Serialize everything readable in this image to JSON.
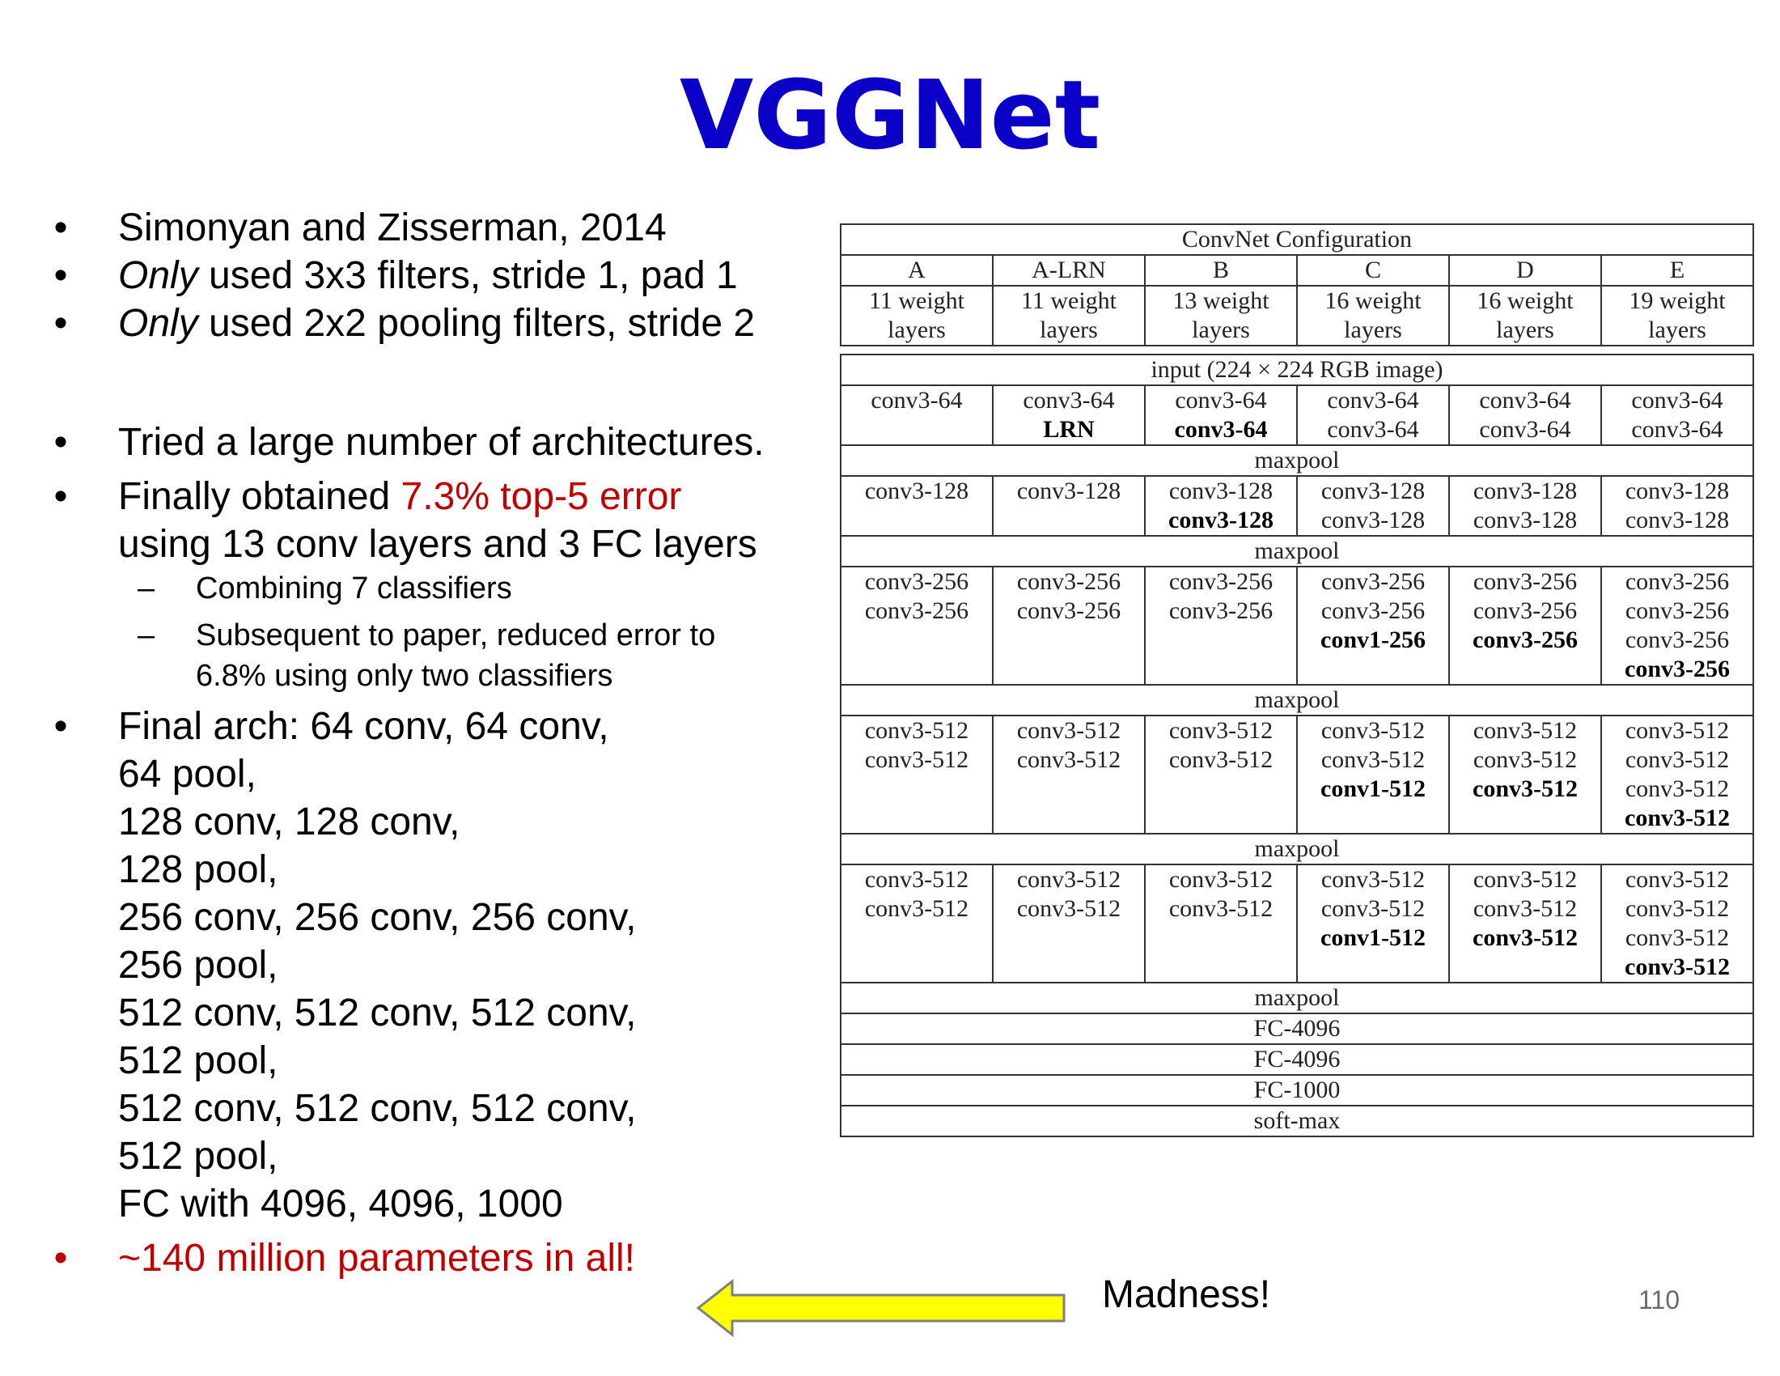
{
  "title": "VGGNet",
  "bullets": {
    "b1": "Simonyan and Zisserman, 2014",
    "b2_em": "Only",
    "b2_rest": " used 3x3 filters, stride 1, pad 1",
    "b3_em": "Only",
    "b3_rest": " used 2x2 pooling filters, stride 2",
    "b4": "Tried a large number of architectures.",
    "b5_pre": "Finally obtained ",
    "b5_red": "7.3% top-5 error",
    "b5_line2": "using 13 conv layers and 3 FC layers",
    "sub1": "Combining 7 classifiers",
    "sub2_line1": "Subsequent to paper, reduced error to",
    "sub2_line2": "6.8% using only two classifiers",
    "final_lines": [
      "Final arch:  64 conv, 64 conv,",
      "64 pool,",
      "128 conv, 128 conv,",
      "128 pool,",
      "256 conv, 256 conv, 256 conv,",
      "256 pool,",
      "512 conv, 512 conv, 512  conv,",
      "512 pool,",
      "512 conv, 512 conv, 512  conv,",
      "512 pool,",
      "FC with 4096, 4096, 1000"
    ],
    "last": "~140 million parameters in all!",
    "bullet_char": "•",
    "dash_char": "–"
  },
  "config_table": {
    "heading": "ConvNet Configuration",
    "columns": [
      "A",
      "A-LRN",
      "B",
      "C",
      "D",
      "E"
    ],
    "layer_counts": [
      [
        "11 weight",
        "layers"
      ],
      [
        "11 weight",
        "layers"
      ],
      [
        "13 weight",
        "layers"
      ],
      [
        "16 weight",
        "layers"
      ],
      [
        "16 weight",
        "layers"
      ],
      [
        "19 weight",
        "layers"
      ]
    ],
    "input": "input (224 × 224 RGB image)",
    "blocks": [
      {
        "cells": [
          [
            {
              "t": "conv3-64"
            }
          ],
          [
            {
              "t": "conv3-64"
            },
            {
              "t": "LRN",
              "b": true
            }
          ],
          [
            {
              "t": "conv3-64"
            },
            {
              "t": "conv3-64",
              "b": true
            }
          ],
          [
            {
              "t": "conv3-64"
            },
            {
              "t": "conv3-64"
            }
          ],
          [
            {
              "t": "conv3-64"
            },
            {
              "t": "conv3-64"
            }
          ],
          [
            {
              "t": "conv3-64"
            },
            {
              "t": "conv3-64"
            }
          ]
        ],
        "after": "maxpool"
      },
      {
        "cells": [
          [
            {
              "t": "conv3-128"
            }
          ],
          [
            {
              "t": "conv3-128"
            }
          ],
          [
            {
              "t": "conv3-128"
            },
            {
              "t": "conv3-128",
              "b": true
            }
          ],
          [
            {
              "t": "conv3-128"
            },
            {
              "t": "conv3-128"
            }
          ],
          [
            {
              "t": "conv3-128"
            },
            {
              "t": "conv3-128"
            }
          ],
          [
            {
              "t": "conv3-128"
            },
            {
              "t": "conv3-128"
            }
          ]
        ],
        "after": "maxpool"
      },
      {
        "cells": [
          [
            {
              "t": "conv3-256"
            },
            {
              "t": "conv3-256"
            }
          ],
          [
            {
              "t": "conv3-256"
            },
            {
              "t": "conv3-256"
            }
          ],
          [
            {
              "t": "conv3-256"
            },
            {
              "t": "conv3-256"
            }
          ],
          [
            {
              "t": "conv3-256"
            },
            {
              "t": "conv3-256"
            },
            {
              "t": "conv1-256",
              "b": true
            }
          ],
          [
            {
              "t": "conv3-256"
            },
            {
              "t": "conv3-256"
            },
            {
              "t": "conv3-256",
              "b": true
            }
          ],
          [
            {
              "t": "conv3-256"
            },
            {
              "t": "conv3-256"
            },
            {
              "t": "conv3-256"
            },
            {
              "t": "conv3-256",
              "b": true
            }
          ]
        ],
        "after": "maxpool"
      },
      {
        "cells": [
          [
            {
              "t": "conv3-512"
            },
            {
              "t": "conv3-512"
            }
          ],
          [
            {
              "t": "conv3-512"
            },
            {
              "t": "conv3-512"
            }
          ],
          [
            {
              "t": "conv3-512"
            },
            {
              "t": "conv3-512"
            }
          ],
          [
            {
              "t": "conv3-512"
            },
            {
              "t": "conv3-512"
            },
            {
              "t": "conv1-512",
              "b": true
            }
          ],
          [
            {
              "t": "conv3-512"
            },
            {
              "t": "conv3-512"
            },
            {
              "t": "conv3-512",
              "b": true
            }
          ],
          [
            {
              "t": "conv3-512"
            },
            {
              "t": "conv3-512"
            },
            {
              "t": "conv3-512"
            },
            {
              "t": "conv3-512",
              "b": true
            }
          ]
        ],
        "after": "maxpool"
      },
      {
        "cells": [
          [
            {
              "t": "conv3-512"
            },
            {
              "t": "conv3-512"
            }
          ],
          [
            {
              "t": "conv3-512"
            },
            {
              "t": "conv3-512"
            }
          ],
          [
            {
              "t": "conv3-512"
            },
            {
              "t": "conv3-512"
            }
          ],
          [
            {
              "t": "conv3-512"
            },
            {
              "t": "conv3-512"
            },
            {
              "t": "conv1-512",
              "b": true
            }
          ],
          [
            {
              "t": "conv3-512"
            },
            {
              "t": "conv3-512"
            },
            {
              "t": "conv3-512",
              "b": true
            }
          ],
          [
            {
              "t": "conv3-512"
            },
            {
              "t": "conv3-512"
            },
            {
              "t": "conv3-512"
            },
            {
              "t": "conv3-512",
              "b": true
            }
          ]
        ],
        "after": "maxpool"
      }
    ],
    "tail": [
      "FC-4096",
      "FC-4096",
      "FC-1000",
      "soft-max"
    ]
  },
  "arrow": {
    "fill": "#ffff00",
    "stroke": "#7f7f7f"
  },
  "madness": "Madness!",
  "page_number": "110",
  "colors": {
    "title": "#0a00c8",
    "highlight_red": "#c00000"
  }
}
